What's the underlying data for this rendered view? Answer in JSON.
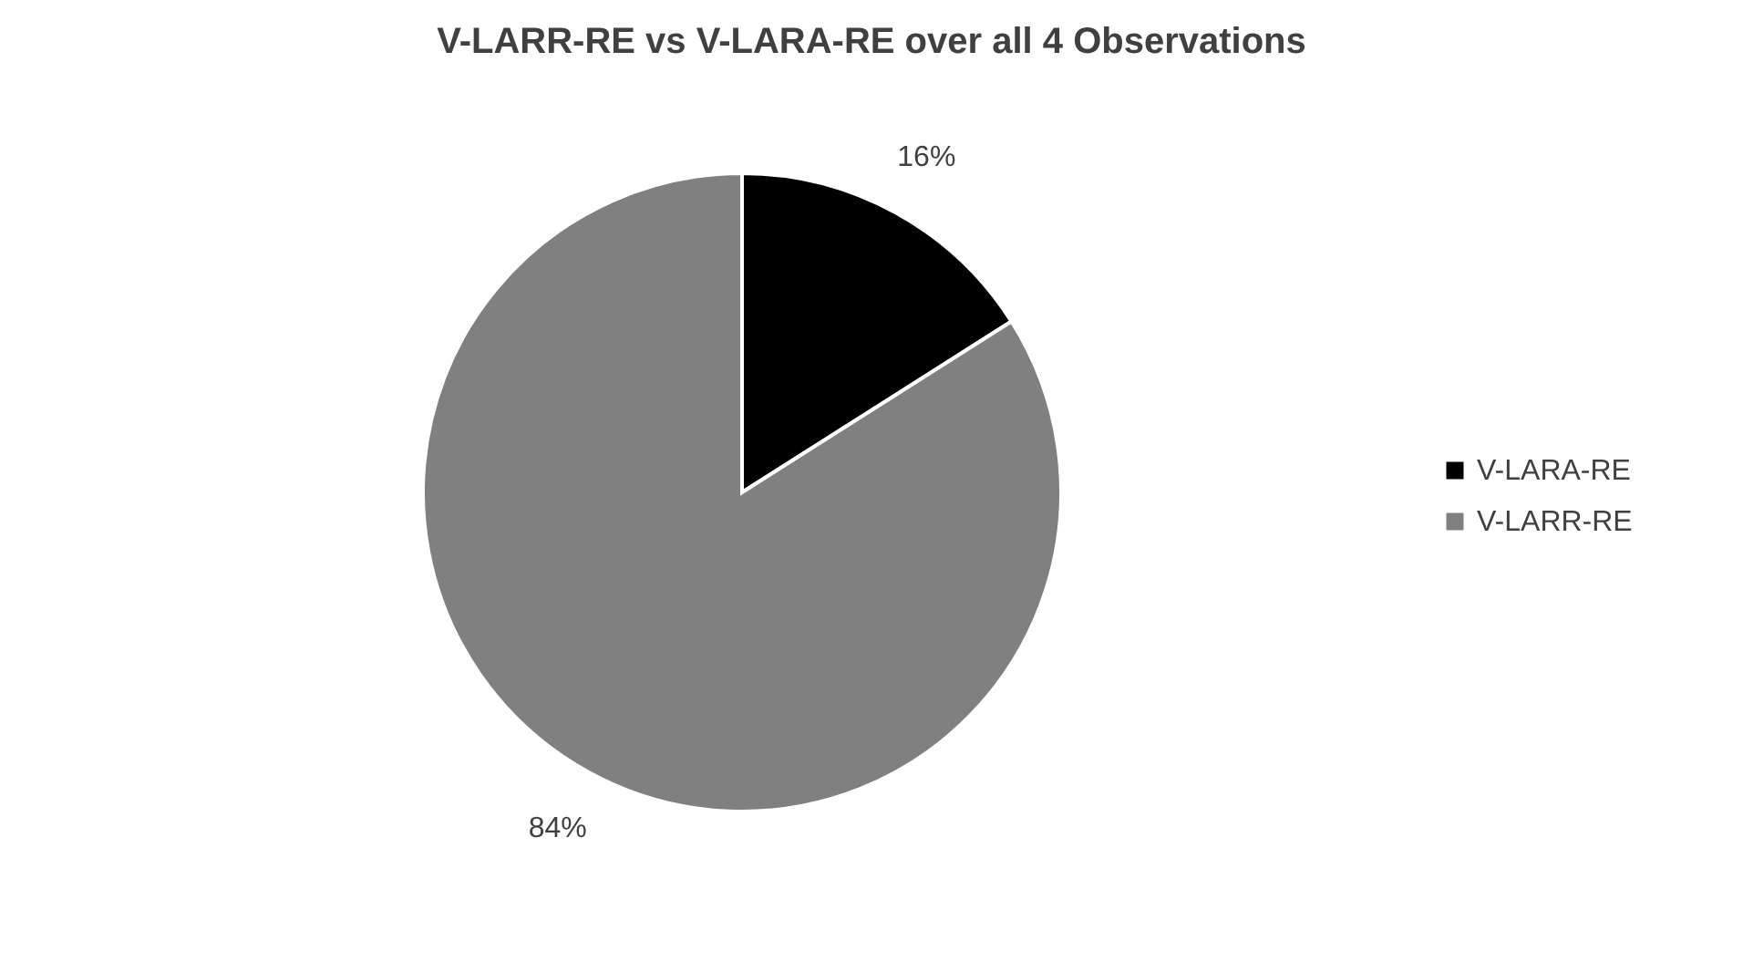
{
  "chart_data": {
    "type": "pie",
    "title": "V-LARR-RE vs V-LARA-RE over all 4 Observations",
    "categories": [
      "V-LARA-RE",
      "V-LARR-RE"
    ],
    "values": [
      16,
      84
    ],
    "colors": [
      "#000000",
      "#808080"
    ],
    "value_labels": [
      "16%",
      "84%"
    ],
    "legend": "right"
  }
}
